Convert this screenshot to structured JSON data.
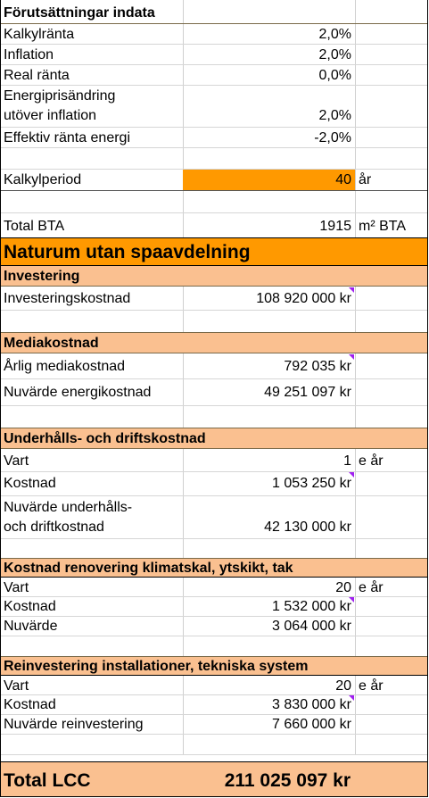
{
  "inputs": {
    "title": "Förutsättningar indata",
    "rows": [
      {
        "label": "Kalkylränta",
        "value": "2,0%"
      },
      {
        "label": "Inflation",
        "value": "2,0%"
      },
      {
        "label": "Real ränta",
        "value": "0,0%"
      },
      {
        "label": "Energiprisändring",
        "value": ""
      },
      {
        "label": "utöver inflation",
        "value": "2,0%"
      },
      {
        "label": "Effektiv ränta energi",
        "value": "-2,0%"
      }
    ],
    "period_label": "Kalkylperiod",
    "period_value": "40",
    "period_unit": "år",
    "bta_label": "Total BTA",
    "bta_value": "1915",
    "bta_unit": "m² BTA"
  },
  "title": "Naturum utan spaavdelning",
  "investering": {
    "title": "Investering",
    "label": "Investeringskostnad",
    "value": "108 920 000 kr"
  },
  "media": {
    "title": "Mediakostnad",
    "annual_label": "Årlig mediakostnad",
    "annual_value": "792 035 kr",
    "npv_label": "Nuvärde energikostnad",
    "npv_value": "49 251 097 kr"
  },
  "underhall": {
    "title": "Underhålls- och driftskostnad",
    "every_label": "Vart",
    "every_value": "1",
    "every_unit": "e år",
    "cost_label": "Kostnad",
    "cost_value": "1 053 250 kr",
    "npv_label_1": "Nuvärde underhålls-",
    "npv_label_2": "och driftkostnad",
    "npv_value": "42 130 000 kr"
  },
  "renovering": {
    "title": "Kostnad renovering klimatskal, ytskikt, tak",
    "every_label": "Vart",
    "every_value": "20",
    "every_unit": "e år",
    "cost_label": "Kostnad",
    "cost_value": "1 532 000 kr",
    "npv_label": "Nuvärde",
    "npv_value": "3 064 000 kr"
  },
  "reinvestering": {
    "title": "Reinvestering installationer, tekniska system",
    "every_label": "Vart",
    "every_value": "20",
    "every_unit": "e år",
    "cost_label": "Kostnad",
    "cost_value": "3 830 000 kr",
    "npv_label": "Nuvärde reinvestering",
    "npv_value": "7 660 000 kr"
  },
  "total": {
    "label": "Total LCC",
    "value": "211 025 097 kr"
  },
  "colors": {
    "section_header": "#fac090",
    "input_highlight": "#ff9900",
    "comment_marker": "#a020f0"
  }
}
